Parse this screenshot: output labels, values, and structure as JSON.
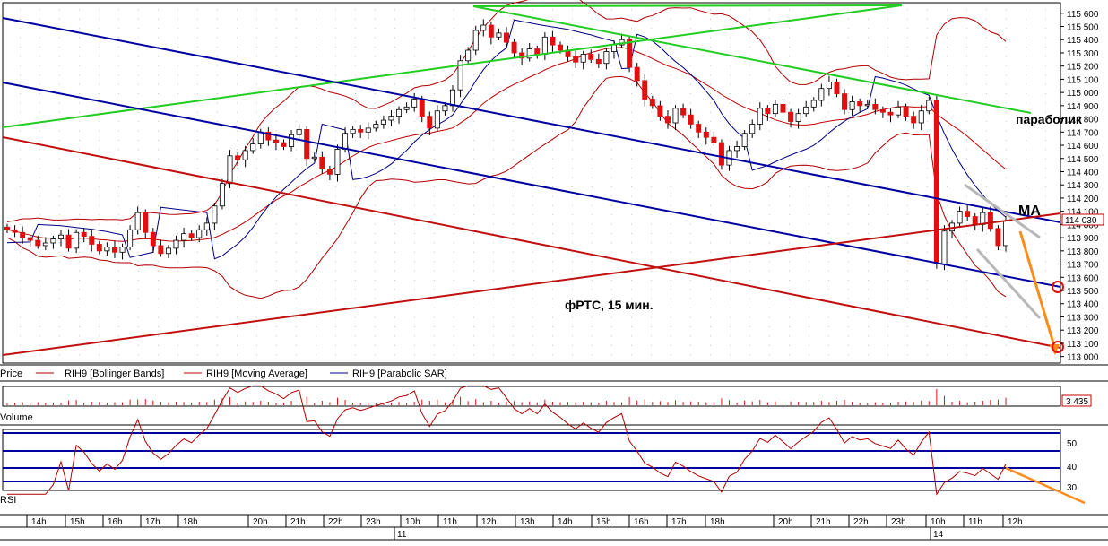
{
  "chart_data": {
    "type": "candlestick",
    "price_axis": {
      "ylim": [
        112950,
        115680
      ],
      "ticks": [
        115600,
        115500,
        115400,
        115300,
        115200,
        115100,
        115000,
        114900,
        114800,
        114700,
        114600,
        114500,
        114400,
        114300,
        114200,
        114100,
        114000,
        113900,
        113800,
        113700,
        113600,
        113500,
        113400,
        113300,
        113200,
        113100,
        113000
      ],
      "tick_labels": [
        "115 600",
        "115 500",
        "115 400",
        "115 300",
        "115 200",
        "115 100",
        "115 000",
        "114 900",
        "114 800",
        "114 700",
        "114 600",
        "114 500",
        "114 400",
        "114 300",
        "114 200",
        "114 100",
        "114 000",
        "113 900",
        "113 800",
        "113 700",
        "113 600",
        "113 500",
        "113 400",
        "113 300",
        "113 200",
        "113 100",
        "113 000"
      ],
      "last_price": 114030,
      "last_price_label": "114 030"
    },
    "time_axis": {
      "hour_labels": [
        "14h",
        "15h",
        "16h",
        "17h",
        "18h",
        "20h",
        "21h",
        "22h",
        "23h",
        "10h",
        "11h",
        "12h",
        "13h",
        "14h",
        "15h",
        "16h",
        "17h",
        "18h",
        "20h",
        "21h",
        "22h",
        "23h",
        "10h",
        "11h",
        "12h"
      ],
      "day_labels": [
        "11",
        "14"
      ]
    },
    "legend": {
      "price": "Price",
      "bb": "RIH9 [Bollinger Bands]",
      "ma": "RIH9 [Moving Average]",
      "sar": "RIH9 [Parabolic SAR]",
      "volume": "Volume",
      "rsi": "RSI"
    },
    "volume_value_label": "3 435",
    "rsi_axis": {
      "ticks": [
        50,
        40,
        30
      ]
    },
    "annotations": {
      "subtitle": "фРТС,  15 мин.",
      "parabolik": "параболик",
      "ma": "МА"
    },
    "close": [
      113960,
      113940,
      113900,
      113880,
      113840,
      113860,
      113890,
      113920,
      113820,
      113940,
      113910,
      113850,
      113800,
      113830,
      113790,
      113830,
      113960,
      114090,
      113940,
      113840,
      113780,
      113820,
      113880,
      113930,
      113900,
      113960,
      114010,
      114140,
      114310,
      114520,
      114490,
      114560,
      114610,
      114700,
      114640,
      114620,
      114590,
      114680,
      114720,
      114500,
      114510,
      114420,
      114380,
      114570,
      114690,
      114720,
      114700,
      114730,
      114760,
      114790,
      114820,
      114870,
      114890,
      114950,
      114820,
      114730,
      114860,
      114900,
      115020,
      115240,
      115320,
      115470,
      115510,
      115420,
      115450,
      115380,
      115300,
      115260,
      115330,
      115290,
      115420,
      115360,
      115320,
      115270,
      115230,
      115290,
      115250,
      115220,
      115310,
      115360,
      115400,
      115190,
      115090,
      114950,
      114900,
      114820,
      114770,
      114880,
      114830,
      114760,
      114700,
      114660,
      114620,
      114450,
      114560,
      114590,
      114690,
      114760,
      114880,
      114840,
      114910,
      114850,
      114780,
      114840,
      114890,
      114940,
      115030,
      115080,
      114990,
      114870,
      114930,
      114900,
      114910,
      114870,
      114850,
      114830,
      114890,
      114820,
      114770,
      114860,
      114940,
      113700,
      113950,
      114010,
      114100,
      114060,
      114000,
      114090,
      113970,
      113840,
      114030
    ],
    "color_labels": {
      "up": "#ffffff",
      "down": "#e01010",
      "bb": "#b00000",
      "ma": "#c00000",
      "sar": "#000080",
      "price_tag": "#c00000"
    }
  }
}
